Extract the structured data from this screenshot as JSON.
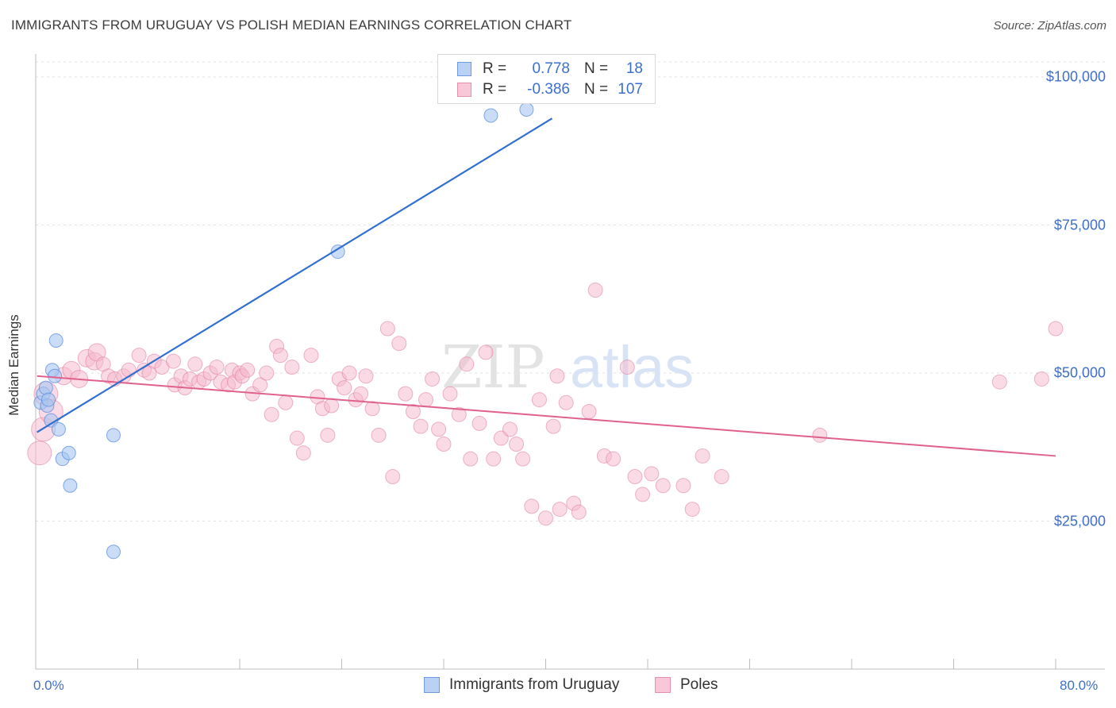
{
  "title": "IMMIGRANTS FROM URUGUAY VS POLISH MEDIAN EARNINGS CORRELATION CHART",
  "source": "Source: ZipAtlas.com",
  "watermark": {
    "zip": "ZIP",
    "atlas": "atlas"
  },
  "colors": {
    "blue": "#5b8ee0",
    "blue_fill": "#a9c6f0",
    "blue_line": "#2e6fd0",
    "pink": "#e07aa0",
    "pink_fill": "#f5b8cc",
    "pink_line": "#e0628c",
    "axis_text": "#3f6fc8"
  },
  "legend": {
    "rows": [
      {
        "r_label": "R =",
        "r_value": "0.778",
        "n_label": "N =",
        "n_value": "18"
      },
      {
        "r_label": "R =",
        "r_value": "-0.386",
        "n_label": "N =",
        "n_value": "107"
      }
    ]
  },
  "bottom_legend": {
    "series1": "Immigrants from Uruguay",
    "series2": "Poles"
  },
  "chart_data": {
    "type": "scatter",
    "title": "IMMIGRANTS FROM URUGUAY VS POLISH MEDIAN EARNINGS CORRELATION CHART",
    "xlabel": "",
    "ylabel": "Median Earnings",
    "xlim": [
      0,
      80
    ],
    "ylim": [
      0,
      105000
    ],
    "x_tick_labels": [
      "0.0%",
      "80.0%"
    ],
    "y_ticks": [
      25000,
      50000,
      75000,
      100000
    ],
    "y_tick_labels": [
      "$25,000",
      "$50,000",
      "$75,000",
      "$100,000"
    ],
    "grid": true,
    "series": [
      {
        "name": "Immigrants from Uruguay",
        "trend": {
          "x0": 0.1,
          "y0": 40000,
          "x1": 40.5,
          "y1": 93000
        },
        "points": [
          [
            0.4,
            45000
          ],
          [
            0.6,
            46500
          ],
          [
            0.8,
            47500
          ],
          [
            0.9,
            44500
          ],
          [
            1.0,
            45500
          ],
          [
            1.2,
            42000
          ],
          [
            1.3,
            50500
          ],
          [
            1.5,
            49500
          ],
          [
            1.6,
            55500
          ],
          [
            1.8,
            40500
          ],
          [
            2.1,
            35500
          ],
          [
            2.6,
            36500
          ],
          [
            2.7,
            31000
          ],
          [
            6.1,
            39500
          ],
          [
            6.1,
            19800
          ],
          [
            23.7,
            70500
          ],
          [
            35.7,
            93500
          ],
          [
            38.5,
            94500
          ]
        ]
      },
      {
        "name": "Poles",
        "trend": {
          "x0": 0.1,
          "y0": 49500,
          "x1": 80,
          "y1": 36000
        },
        "points": [
          [
            0.3,
            36500
          ],
          [
            0.6,
            40500
          ],
          [
            0.8,
            46500
          ],
          [
            1.2,
            43500
          ],
          [
            2.2,
            49500
          ],
          [
            2.8,
            50500
          ],
          [
            3.4,
            49000
          ],
          [
            4.0,
            52500
          ],
          [
            4.6,
            52000
          ],
          [
            4.8,
            53500
          ],
          [
            5.3,
            51500
          ],
          [
            5.7,
            49500
          ],
          [
            6.2,
            49000
          ],
          [
            6.9,
            49500
          ],
          [
            7.3,
            50500
          ],
          [
            8.1,
            53000
          ],
          [
            8.5,
            50500
          ],
          [
            8.9,
            50000
          ],
          [
            9.3,
            52000
          ],
          [
            9.9,
            51000
          ],
          [
            10.8,
            52000
          ],
          [
            10.9,
            48000
          ],
          [
            11.4,
            49500
          ],
          [
            11.7,
            47500
          ],
          [
            12.1,
            49000
          ],
          [
            12.5,
            51500
          ],
          [
            12.8,
            48500
          ],
          [
            13.2,
            49000
          ],
          [
            13.7,
            50000
          ],
          [
            14.2,
            51000
          ],
          [
            14.5,
            48500
          ],
          [
            15.1,
            48000
          ],
          [
            15.4,
            50500
          ],
          [
            15.6,
            48500
          ],
          [
            16.0,
            50000
          ],
          [
            16.2,
            49500
          ],
          [
            16.6,
            50500
          ],
          [
            17.0,
            46500
          ],
          [
            17.6,
            48000
          ],
          [
            18.1,
            50000
          ],
          [
            18.5,
            43000
          ],
          [
            18.9,
            54500
          ],
          [
            19.2,
            53000
          ],
          [
            19.6,
            45000
          ],
          [
            20.1,
            51000
          ],
          [
            20.5,
            39000
          ],
          [
            21.0,
            36500
          ],
          [
            21.6,
            53000
          ],
          [
            22.1,
            46000
          ],
          [
            22.5,
            44000
          ],
          [
            22.9,
            39500
          ],
          [
            23.2,
            44500
          ],
          [
            23.8,
            49000
          ],
          [
            24.2,
            47500
          ],
          [
            24.6,
            50000
          ],
          [
            25.1,
            45500
          ],
          [
            25.5,
            46500
          ],
          [
            25.9,
            49500
          ],
          [
            26.4,
            44000
          ],
          [
            26.9,
            39500
          ],
          [
            27.6,
            57500
          ],
          [
            28.0,
            32500
          ],
          [
            28.5,
            55000
          ],
          [
            29.0,
            46500
          ],
          [
            29.6,
            43500
          ],
          [
            30.2,
            41000
          ],
          [
            30.6,
            45500
          ],
          [
            31.1,
            49000
          ],
          [
            31.6,
            40500
          ],
          [
            32.0,
            38000
          ],
          [
            32.5,
            46500
          ],
          [
            33.2,
            43000
          ],
          [
            33.8,
            51500
          ],
          [
            34.1,
            35500
          ],
          [
            34.8,
            41500
          ],
          [
            35.3,
            53500
          ],
          [
            35.9,
            35500
          ],
          [
            36.5,
            39000
          ],
          [
            37.2,
            40500
          ],
          [
            37.7,
            38000
          ],
          [
            38.2,
            35500
          ],
          [
            38.9,
            27500
          ],
          [
            39.5,
            45500
          ],
          [
            40.0,
            25500
          ],
          [
            40.6,
            41000
          ],
          [
            41.1,
            27000
          ],
          [
            41.6,
            45000
          ],
          [
            42.2,
            28000
          ],
          [
            42.6,
            26500
          ],
          [
            43.4,
            43500
          ],
          [
            43.9,
            64000
          ],
          [
            44.6,
            36000
          ],
          [
            45.3,
            35500
          ],
          [
            46.4,
            51000
          ],
          [
            47.0,
            32500
          ],
          [
            47.6,
            29500
          ],
          [
            48.3,
            33000
          ],
          [
            49.2,
            31000
          ],
          [
            50.8,
            31000
          ],
          [
            51.5,
            27000
          ],
          [
            52.3,
            36000
          ],
          [
            53.8,
            32500
          ],
          [
            61.5,
            39500
          ],
          [
            75.6,
            48500
          ],
          [
            78.9,
            49000
          ],
          [
            80.0,
            57500
          ],
          [
            40.9,
            49500
          ]
        ]
      }
    ]
  }
}
